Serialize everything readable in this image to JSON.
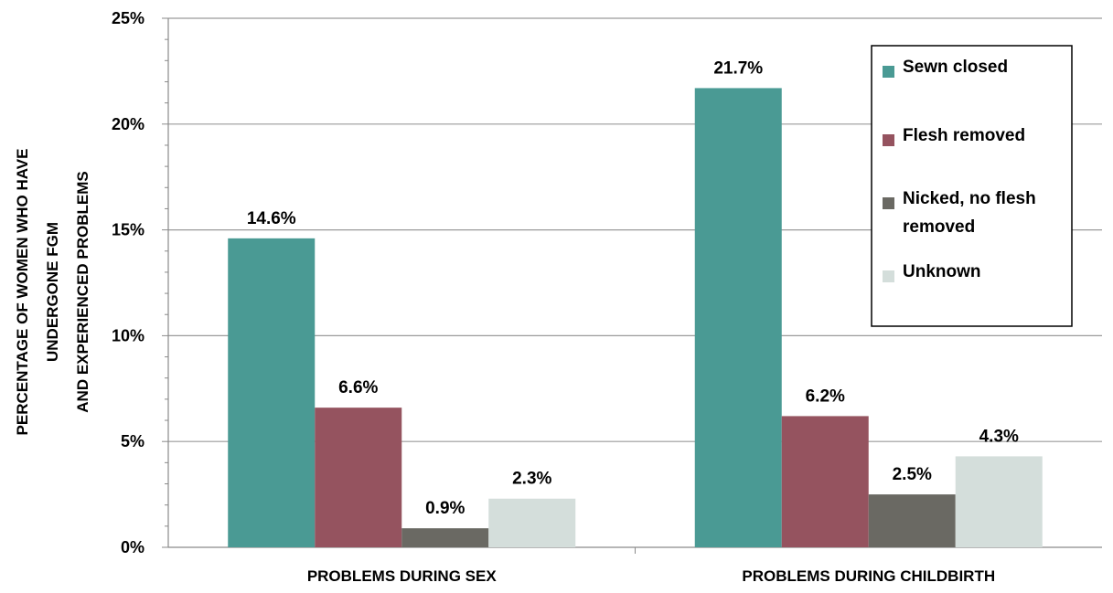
{
  "chart_data": {
    "type": "bar",
    "categories": [
      "PROBLEMS DURING SEX",
      "PROBLEMS DURING CHILDBIRTH"
    ],
    "series": [
      {
        "name": "Sewn closed",
        "values": [
          14.6,
          21.7
        ],
        "labels": [
          "14.6%",
          "21.7%"
        ],
        "color": "#4a9a94"
      },
      {
        "name": "Flesh removed",
        "values": [
          6.6,
          6.2
        ],
        "labels": [
          "6.6%",
          "6.2%"
        ],
        "color": "#95535f"
      },
      {
        "name": "Nicked, no flesh removed",
        "values": [
          0.9,
          2.5
        ],
        "labels": [
          "0.9%",
          "2.5%"
        ],
        "color": "#6a6963"
      },
      {
        "name": "Unknown",
        "values": [
          2.3,
          4.3
        ],
        "labels": [
          "2.3%",
          "4.3%"
        ],
        "color": "#d4dedb"
      }
    ],
    "ylabel_lines": [
      "PERCENTAGE OF WOMEN WHO HAVE",
      "UNDERGONE FGM",
      "AND EXPERIENCED PROBLEMS"
    ],
    "ylim": [
      0,
      25
    ],
    "yticks": [
      {
        "value": 0,
        "label": "0%"
      },
      {
        "value": 5,
        "label": "5%"
      },
      {
        "value": 10,
        "label": "10%"
      },
      {
        "value": 15,
        "label": "15%"
      },
      {
        "value": 20,
        "label": "20%"
      },
      {
        "value": 25,
        "label": "25%"
      }
    ],
    "grid": true,
    "legend_position": "top-right"
  }
}
